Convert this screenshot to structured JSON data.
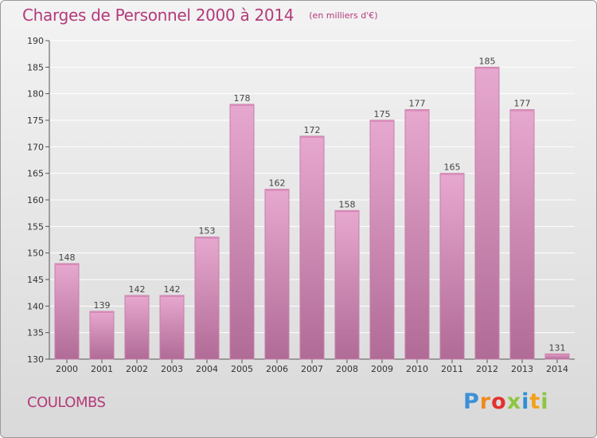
{
  "header": {
    "title": "Charges de Personnel 2000 à 2014",
    "subtitle": "(en milliers d'€)"
  },
  "footer": {
    "commune": "COULOMBS",
    "logo_text": "Proxiti",
    "logo_letters": [
      {
        "ch": "P",
        "color": "#3d8fd6"
      },
      {
        "ch": "r",
        "color": "#f08a1c"
      },
      {
        "ch": "o",
        "color": "#e2312e"
      },
      {
        "ch": "x",
        "color": "#8cc63f"
      },
      {
        "ch": "i",
        "color": "#2d8fd6"
      },
      {
        "ch": "t",
        "color": "#f3a11b"
      },
      {
        "ch": "i",
        "color": "#8cc63f"
      }
    ]
  },
  "colors": {
    "accent": "#b33a7a",
    "bar_top": "#e7a8cf",
    "bar_bottom": "#b06b96",
    "bar_stroke": "#c57faa"
  },
  "chart_data": {
    "type": "bar",
    "categories": [
      "2000",
      "2001",
      "2002",
      "2003",
      "2004",
      "2005",
      "2006",
      "2007",
      "2008",
      "2009",
      "2010",
      "2011",
      "2012",
      "2013",
      "2014"
    ],
    "values": [
      148,
      139,
      142,
      142,
      153,
      178,
      162,
      172,
      158,
      175,
      177,
      165,
      185,
      177,
      131
    ],
    "title": "Charges de Personnel 2000 à 2014",
    "subtitle": "(en milliers d'€)",
    "xlabel": "",
    "ylabel": "",
    "ylim": [
      130,
      190
    ],
    "yticks": [
      130,
      135,
      140,
      145,
      150,
      155,
      160,
      165,
      170,
      175,
      180,
      185,
      190
    ],
    "grid": true
  }
}
